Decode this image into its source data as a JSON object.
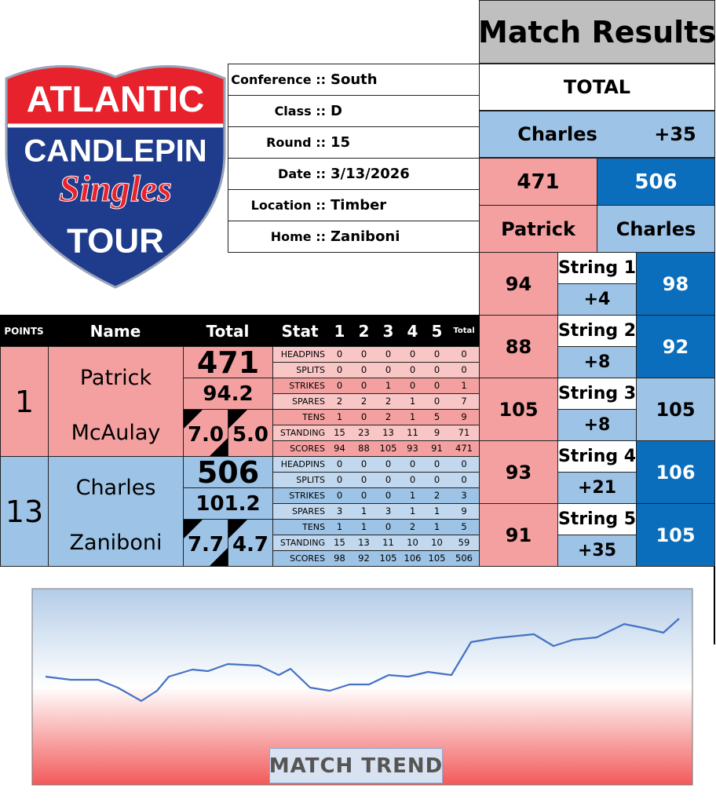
{
  "logo": {
    "line1": "ATLANTIC",
    "line2": "CANDLEPIN",
    "line3": "Singles",
    "line4": "TOUR"
  },
  "info": [
    {
      "label": "Conference ::",
      "value": "South"
    },
    {
      "label": "Class ::",
      "value": "D"
    },
    {
      "label": "Round ::",
      "value": "15"
    },
    {
      "label": "Date ::",
      "value": "3/13/2026"
    },
    {
      "label": "Location ::",
      "value": "Timber"
    },
    {
      "label": "Home ::",
      "value": "Zaniboni"
    }
  ],
  "results": {
    "title": "Match Results",
    "total_label": "TOTAL",
    "leader": "Charles",
    "margin": "+35",
    "scores": [
      "471",
      "506"
    ],
    "names": [
      "Patrick",
      "Charles"
    ],
    "strings": [
      {
        "left": "94",
        "label": "String 1",
        "diff": "+4",
        "right": "98"
      },
      {
        "left": "88",
        "label": "String 2",
        "diff": "+8",
        "right": "92"
      },
      {
        "left": "105",
        "label": "String 3",
        "diff": "+8",
        "right": "105"
      },
      {
        "left": "93",
        "label": "String 4",
        "diff": "+21",
        "right": "106"
      },
      {
        "left": "91",
        "label": "String 5",
        "diff": "+35",
        "right": "105"
      }
    ]
  },
  "stats": {
    "headers": [
      "POINTS",
      "Name",
      "Total",
      "Stat",
      "1",
      "2",
      "3",
      "4",
      "5",
      "Total"
    ],
    "players": [
      {
        "points": "1",
        "first": "Patrick",
        "last": "McAulay",
        "total": "471",
        "average": "94.2",
        "left": "7.0",
        "right": "5.0",
        "rows": [
          {
            "stat": "HEADPINS",
            "values": [
              "0",
              "0",
              "0",
              "0",
              "0",
              "0"
            ]
          },
          {
            "stat": "SPLITS",
            "values": [
              "0",
              "0",
              "0",
              "0",
              "0",
              "0"
            ]
          },
          {
            "stat": "STRIKES",
            "values": [
              "0",
              "0",
              "1",
              "0",
              "0",
              "1"
            ]
          },
          {
            "stat": "SPARES",
            "values": [
              "2",
              "2",
              "2",
              "1",
              "0",
              "7"
            ]
          },
          {
            "stat": "TENS",
            "values": [
              "1",
              "0",
              "2",
              "1",
              "5",
              "9"
            ]
          },
          {
            "stat": "STANDING",
            "values": [
              "15",
              "23",
              "13",
              "11",
              "9",
              "71"
            ]
          },
          {
            "stat": "SCORES",
            "values": [
              "94",
              "88",
              "105",
              "93",
              "91",
              "471"
            ]
          }
        ]
      },
      {
        "points": "13",
        "first": "Charles",
        "last": "Zaniboni",
        "total": "506",
        "average": "101.2",
        "left": "7.7",
        "right": "4.7",
        "rows": [
          {
            "stat": "HEADPINS",
            "values": [
              "0",
              "0",
              "0",
              "0",
              "0",
              "0"
            ]
          },
          {
            "stat": "SPLITS",
            "values": [
              "0",
              "0",
              "0",
              "0",
              "0",
              "0"
            ]
          },
          {
            "stat": "STRIKES",
            "values": [
              "0",
              "0",
              "0",
              "1",
              "2",
              "3"
            ]
          },
          {
            "stat": "SPARES",
            "values": [
              "3",
              "1",
              "3",
              "1",
              "1",
              "9"
            ]
          },
          {
            "stat": "TENS",
            "values": [
              "1",
              "1",
              "0",
              "2",
              "1",
              "5"
            ]
          },
          {
            "stat": "STANDING",
            "values": [
              "15",
              "13",
              "11",
              "10",
              "10",
              "59"
            ]
          },
          {
            "stat": "SCORES",
            "values": [
              "98",
              "92",
              "105",
              "106",
              "105",
              "506"
            ]
          }
        ]
      }
    ]
  },
  "trend": {
    "label": "MATCH TREND"
  }
}
